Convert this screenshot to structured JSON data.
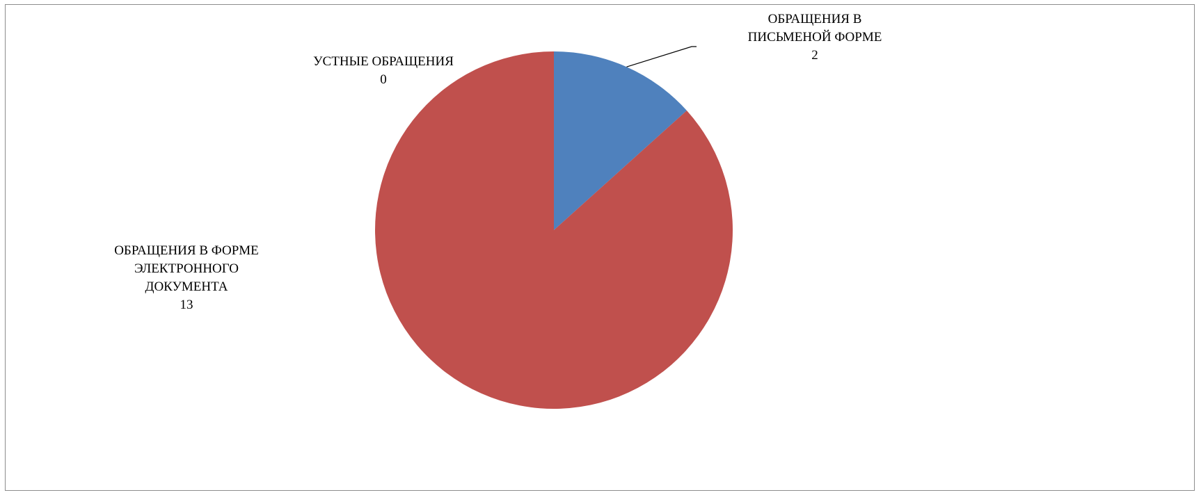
{
  "chart_data": {
    "type": "pie",
    "title": "",
    "categories": [
      "ОБРАЩЕНИЯ В ПИСЬМЕНОЙ ФОРМЕ",
      "ОБРАЩЕНИЯ В ФОРМЕ ЭЛЕКТРОННОГО ДОКУМЕНТА",
      "УСТНЫЕ ОБРАЩЕНИЯ"
    ],
    "values": [
      2,
      13,
      0
    ],
    "colors": [
      "#4f81bd",
      "#c0504d",
      "#9bbb59"
    ],
    "legend": "none",
    "data_labels": [
      {
        "lines": [
          "ОБРАЩЕНИЯ В",
          "ПИСЬМЕНОЙ ФОРМЕ"
        ],
        "value": "2"
      },
      {
        "lines": [
          "ОБРАЩЕНИЯ В ФОРМЕ",
          "ЭЛЕКТРОННОГО",
          "ДОКУМЕНТА"
        ],
        "value": "13"
      },
      {
        "lines": [
          "УСТНЫЕ ОБРАЩЕНИЯ"
        ],
        "value": "0"
      }
    ]
  }
}
